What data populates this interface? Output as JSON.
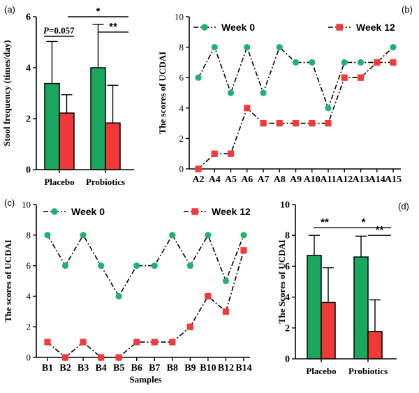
{
  "colors": {
    "week0": "#1fb36b",
    "week12": "#f23a3a",
    "green_bar": "#1aa85f",
    "red_bar": "#f03a3a"
  },
  "chart_data": [
    {
      "panel": "(a)",
      "type": "bar",
      "categories": [
        "Placebo",
        "Probiotics"
      ],
      "series": [
        {
          "values": [
            3.38,
            4.0
          ],
          "errors": [
            1.65,
            1.7
          ]
        },
        {
          "values": [
            2.22,
            1.83
          ],
          "errors": [
            0.72,
            1.48
          ]
        }
      ],
      "ylabel": "Stool frequency (times/day)",
      "ylim": [
        0,
        6
      ],
      "yticks": [
        "0",
        "2",
        "4",
        "6"
      ],
      "annotations": {
        "pvalue": "P=0.057",
        "star1": "*",
        "star2": "**"
      }
    },
    {
      "panel": "(b)",
      "type": "line",
      "categories": [
        "A2",
        "A4",
        "A5",
        "A6",
        "A7",
        "A8",
        "A9",
        "A10",
        "A11",
        "A12",
        "A13",
        "A14",
        "A15"
      ],
      "series": [
        {
          "name": "Week 0",
          "values": [
            6,
            8,
            5,
            8,
            5,
            8,
            7,
            7,
            4,
            7,
            7,
            7,
            8
          ]
        },
        {
          "name": "Week 12",
          "values": [
            0,
            1,
            1,
            4,
            3,
            3,
            3,
            3,
            3,
            6,
            6,
            7,
            7
          ]
        }
      ],
      "ylabel": "The scores of UCDAI",
      "ylim": [
        0,
        10
      ],
      "yticks": [
        "0",
        "2",
        "4",
        "6",
        "8",
        "10"
      ]
    },
    {
      "panel": "(c)",
      "type": "line",
      "categories": [
        "B1",
        "B2",
        "B3",
        "B4",
        "B5",
        "B6",
        "B7",
        "B8",
        "B9",
        "B10",
        "B12",
        "B14"
      ],
      "series": [
        {
          "name": "Week 0",
          "values": [
            8,
            6,
            8,
            6,
            4,
            6,
            6,
            8,
            6,
            8,
            5,
            8
          ]
        },
        {
          "name": "Week 12",
          "values": [
            1,
            0,
            1,
            0,
            0,
            1,
            1,
            1,
            2,
            4,
            3,
            7
          ]
        }
      ],
      "xlabel": "Samples",
      "ylabel": "The scores of UCDAI",
      "ylim": [
        0,
        10
      ],
      "yticks": [
        "0",
        "2",
        "4",
        "6",
        "8",
        "10"
      ]
    },
    {
      "panel": "(d)",
      "type": "bar",
      "categories": [
        "Placebo",
        "Probiotics"
      ],
      "series": [
        {
          "values": [
            6.7,
            6.6
          ],
          "errors": [
            1.3,
            1.35
          ]
        },
        {
          "values": [
            3.65,
            1.77
          ],
          "errors": [
            2.25,
            2.05
          ]
        }
      ],
      "ylabel": "The Scores of  UCDAI",
      "ylim": [
        0,
        10
      ],
      "yticks": [
        "0",
        "2",
        "4",
        "6",
        "8",
        "10"
      ],
      "annotations": {
        "star_left": "**",
        "star_top": "*",
        "star_right": "**"
      }
    }
  ]
}
